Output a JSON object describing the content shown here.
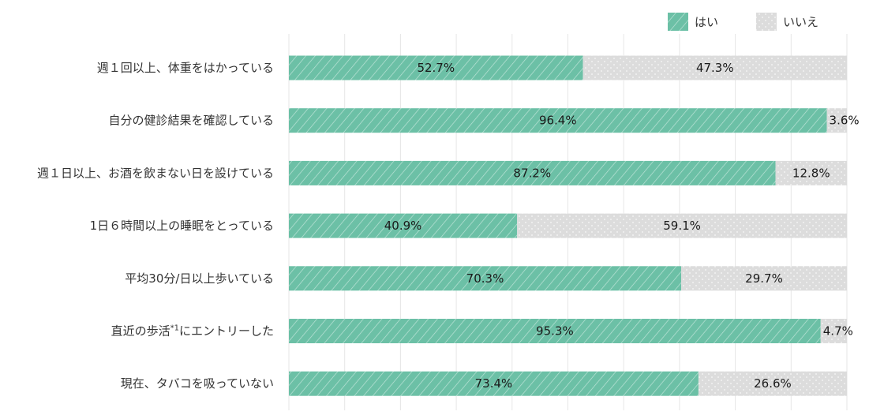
{
  "chart_data": {
    "type": "bar",
    "orientation": "horizontal",
    "stacked": true,
    "categories": [
      "週１回以上、体重をはかっている",
      "自分の健診結果を確認している",
      "週１日以上、お酒を飲まない日を設けている",
      "1日６時間以上の睡眠をとっている",
      "平均30分/日以上歩いている",
      "直近の歩活",
      "現在、タバコを吸っていない"
    ],
    "category_suffix": [
      "",
      "",
      "",
      "",
      "",
      "にエントリーした",
      ""
    ],
    "category_superscript": [
      "",
      "",
      "",
      "",
      "",
      "*1",
      ""
    ],
    "series": [
      {
        "name": "はい",
        "values": [
          52.7,
          96.4,
          87.2,
          40.9,
          70.3,
          95.3,
          73.4
        ],
        "labels": [
          "52.7%",
          "96.4%",
          "87.2%",
          "40.9%",
          "70.3%",
          "95.3%",
          "73.4%"
        ],
        "color": "#6cc0a6",
        "pattern": "diagonal-stripes"
      },
      {
        "name": "いいえ",
        "values": [
          47.3,
          3.6,
          12.8,
          59.1,
          29.7,
          4.7,
          26.6
        ],
        "labels": [
          "47.3%",
          "3.6%",
          "12.8%",
          "59.1%",
          "29.7%",
          "4.7%",
          "26.6%"
        ],
        "color": "#dcdcdc",
        "pattern": "dots"
      }
    ],
    "xlim": [
      0,
      100
    ],
    "grid": true,
    "legend": "top-right"
  }
}
